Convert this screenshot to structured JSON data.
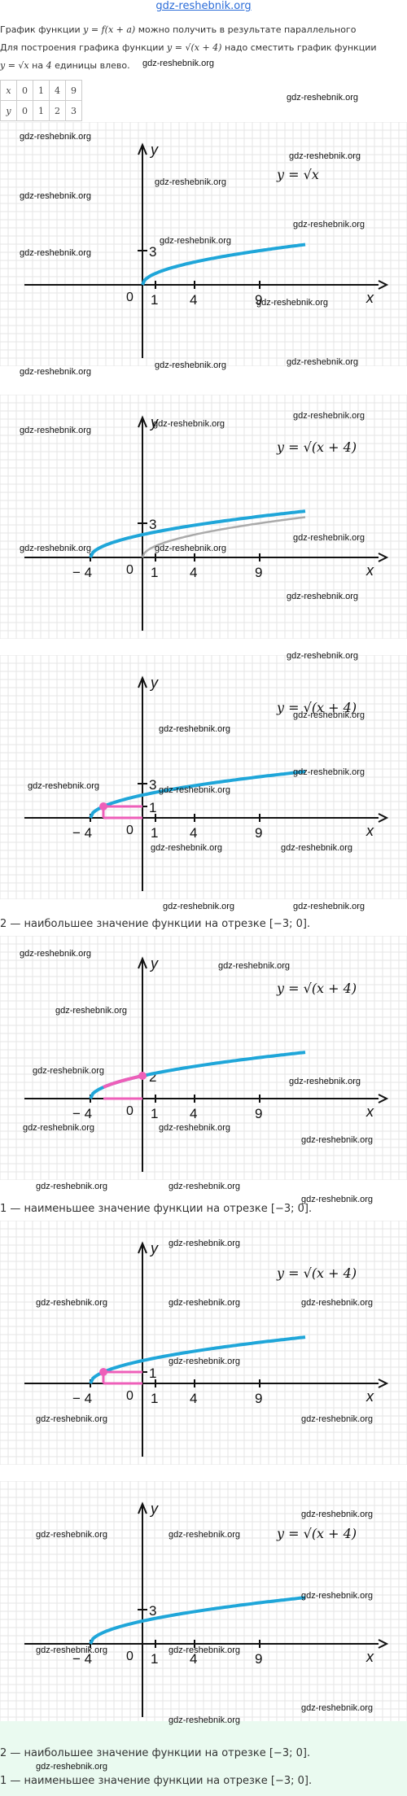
{
  "site": {
    "title": "gdz-reshebnik.org"
  },
  "intro": {
    "line1_prefix": "График функции",
    "line1_formula": "y = f(x + a)",
    "line1_suffix": "можно получить в результате параллельного",
    "line2_prefix": "Для построения графика функции",
    "line2_formula": "y = √(x + 4)",
    "line2_suffix": "надо сместить график функции",
    "line3_formula": "y = √x",
    "line3_mid": "на",
    "line3_num": "4",
    "line3_suffix": "единицы влево."
  },
  "table": {
    "x_label": "x",
    "y_label": "y",
    "x_values": [
      "0",
      "1",
      "4",
      "9"
    ],
    "y_values": [
      "0",
      "1",
      "2",
      "3"
    ]
  },
  "watermark": "gdz-reshebnik.org",
  "graphs": [
    {
      "formula": "y = √x",
      "y_axis": "y",
      "x_axis": "x",
      "x_ticks": [
        "0",
        "1",
        "4",
        "9"
      ],
      "y_ticks": [
        "3"
      ]
    },
    {
      "formula": "y = √(x + 4)",
      "y_axis": "y",
      "x_axis": "x",
      "x_ticks": [
        "− 4",
        "0",
        "1",
        "4",
        "9"
      ],
      "y_ticks": [
        "3"
      ]
    },
    {
      "formula": "y = √(x + 4)",
      "y_axis": "y",
      "x_axis": "x",
      "x_ticks": [
        "− 4",
        "0",
        "1",
        "4",
        "9"
      ],
      "y_ticks": [
        "3",
        "1"
      ]
    },
    {
      "formula": "y = √(x + 4)",
      "y_axis": "y",
      "x_axis": "x",
      "x_ticks": [
        "− 4",
        "0",
        "1",
        "4",
        "9"
      ],
      "y_ticks": [
        "2"
      ]
    },
    {
      "formula": "y = √(x + 4)",
      "y_axis": "y",
      "x_axis": "x",
      "x_ticks": [
        "− 4",
        "0",
        "1",
        "4",
        "9"
      ],
      "y_ticks": [
        "1"
      ]
    },
    {
      "formula": "y = √(x + 4)",
      "y_axis": "y",
      "x_axis": "x",
      "x_ticks": [
        "− 4",
        "0",
        "1",
        "4",
        "9"
      ],
      "y_ticks": [
        "3"
      ]
    }
  ],
  "notes": {
    "max_note": "2 — наибольшее значение функции на отрезке [−3; 0].",
    "min_note": "1 — наименьшее значение функции на отрезке [−3; 0]."
  },
  "answer": {
    "max": "2 — наибольшее значение функции на отрезке [−3; 0].",
    "min": "1 — наименьшее значение функции на отрезке [−3; 0]."
  },
  "colors": {
    "curve": "#1fa6d9",
    "shifted_ghost": "#aaaaaa",
    "highlight": "#ee5fb9",
    "grid": "#e6e6e6",
    "answer_bg": "#eafaf0"
  }
}
